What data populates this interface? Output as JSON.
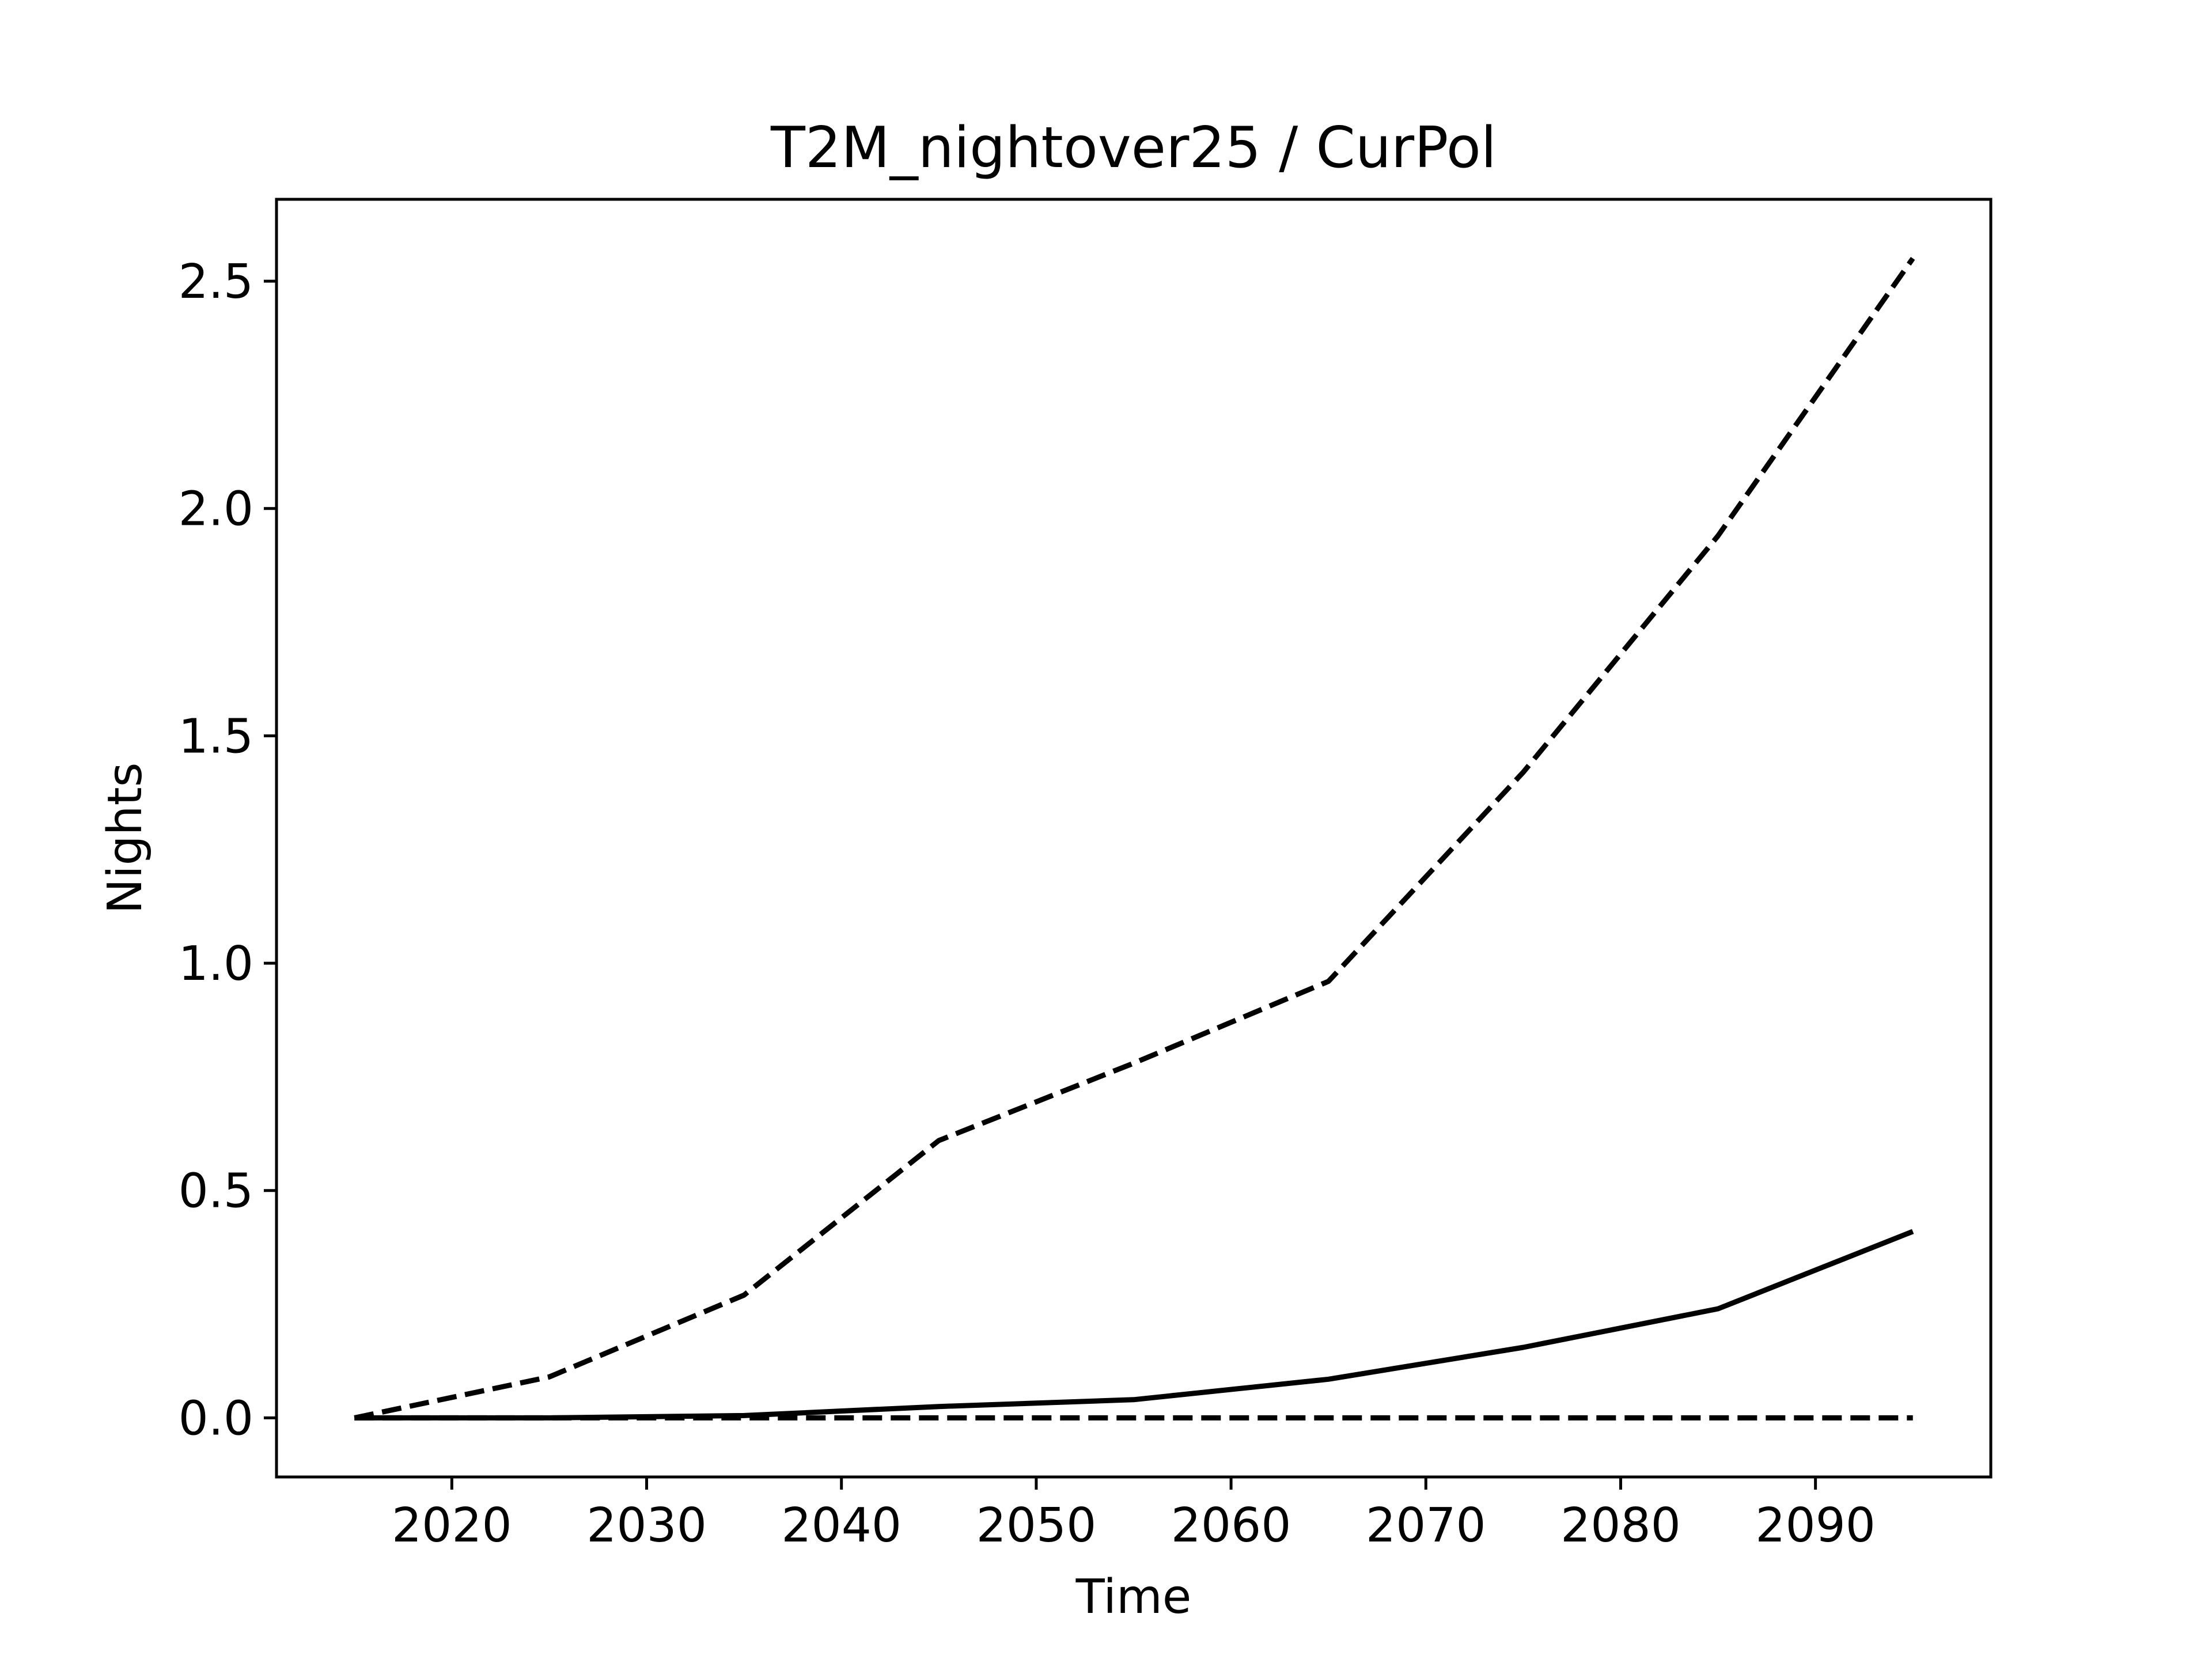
{
  "chart_data": {
    "type": "line",
    "title": "T2M_nightover25 / CurPol",
    "xlabel": "Time",
    "ylabel": "Nights",
    "xlim": [
      2011,
      2099
    ],
    "ylim": [
      -0.13,
      2.68
    ],
    "x_ticks": [
      2020,
      2030,
      2040,
      2050,
      2060,
      2070,
      2080,
      2090
    ],
    "x_tick_labels": [
      "2020",
      "2030",
      "2040",
      "2050",
      "2060",
      "2070",
      "2080",
      "2090"
    ],
    "y_ticks": [
      0.0,
      0.5,
      1.0,
      1.5,
      2.0,
      2.5
    ],
    "y_tick_labels": [
      "0.0",
      "0.5",
      "1.0",
      "1.5",
      "2.0",
      "2.5"
    ],
    "grid": false,
    "series": [
      {
        "style": "dashed",
        "color": "#000000",
        "x": [
          2015,
          2025,
          2035,
          2045,
          2055,
          2065,
          2075,
          2085,
          2095
        ],
        "y": [
          0.0,
          0.09,
          0.27,
          0.61,
          0.78,
          0.96,
          1.42,
          1.94,
          2.55
        ]
      },
      {
        "style": "solid",
        "color": "#000000",
        "x": [
          2015,
          2025,
          2035,
          2045,
          2055,
          2065,
          2075,
          2085,
          2095
        ],
        "y": [
          0.0,
          0.0,
          0.005,
          0.025,
          0.04,
          0.085,
          0.155,
          0.24,
          0.41
        ]
      },
      {
        "style": "dashed",
        "color": "#000000",
        "x": [
          2015,
          2025,
          2035,
          2045,
          2055,
          2065,
          2075,
          2085,
          2095
        ],
        "y": [
          0.0,
          0.0,
          0.0,
          0.0,
          0.0,
          0.0,
          0.0,
          0.0,
          0.0
        ]
      }
    ]
  }
}
